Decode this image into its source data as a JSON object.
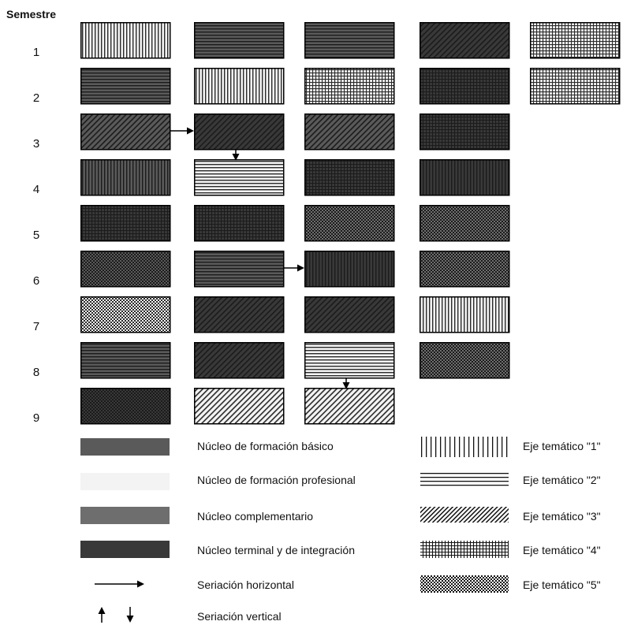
{
  "header": {
    "semester_label": "Semestre"
  },
  "colors": {
    "basico": "#5a5a5a",
    "profesional": "#f3f3f3",
    "complementario": "#6e6e6e",
    "terminal": "#393939",
    "line_dark": "#1b1b1b",
    "line_on_light": "#2a2a2a"
  },
  "semesters": [
    {
      "label": "1",
      "courses": [
        {
          "nucleus": "profesional",
          "axis": "1"
        },
        {
          "nucleus": "basico",
          "axis": "2"
        },
        {
          "nucleus": "basico",
          "axis": "2"
        },
        {
          "nucleus": "terminal",
          "axis": "3"
        },
        {
          "nucleus": "profesional",
          "axis": "4"
        }
      ]
    },
    {
      "label": "2",
      "courses": [
        {
          "nucleus": "basico",
          "axis": "2"
        },
        {
          "nucleus": "profesional",
          "axis": "1"
        },
        {
          "nucleus": "profesional",
          "axis": "4"
        },
        {
          "nucleus": "terminal",
          "axis": "4"
        },
        {
          "nucleus": "profesional",
          "axis": "4"
        }
      ]
    },
    {
      "label": "3",
      "courses": [
        {
          "nucleus": "basico",
          "axis": "3"
        },
        {
          "nucleus": "terminal",
          "axis": "3"
        },
        {
          "nucleus": "basico",
          "axis": "3"
        },
        {
          "nucleus": "terminal",
          "axis": "4"
        }
      ]
    },
    {
      "label": "4",
      "courses": [
        {
          "nucleus": "basico",
          "axis": "1"
        },
        {
          "nucleus": "profesional",
          "axis": "2"
        },
        {
          "nucleus": "terminal",
          "axis": "4"
        },
        {
          "nucleus": "terminal",
          "axis": "1"
        }
      ]
    },
    {
      "label": "5",
      "courses": [
        {
          "nucleus": "terminal",
          "axis": "4"
        },
        {
          "nucleus": "terminal",
          "axis": "4"
        },
        {
          "nucleus": "complementario",
          "axis": "5"
        },
        {
          "nucleus": "complementario",
          "axis": "5"
        }
      ]
    },
    {
      "label": "6",
      "courses": [
        {
          "nucleus": "basico",
          "axis": "5"
        },
        {
          "nucleus": "basico",
          "axis": "2"
        },
        {
          "nucleus": "terminal",
          "axis": "1"
        },
        {
          "nucleus": "complementario",
          "axis": "5"
        }
      ]
    },
    {
      "label": "7",
      "courses": [
        {
          "nucleus": "profesional",
          "axis": "5"
        },
        {
          "nucleus": "terminal",
          "axis": "3"
        },
        {
          "nucleus": "terminal",
          "axis": "3"
        },
        {
          "nucleus": "profesional",
          "axis": "1"
        }
      ]
    },
    {
      "label": "8",
      "courses": [
        {
          "nucleus": "basico",
          "axis": "2"
        },
        {
          "nucleus": "terminal",
          "axis": "3"
        },
        {
          "nucleus": "profesional",
          "axis": "2"
        },
        {
          "nucleus": "complementario",
          "axis": "5"
        }
      ]
    },
    {
      "label": "9",
      "courses": [
        {
          "nucleus": "terminal",
          "axis": "5"
        },
        {
          "nucleus": "profesional",
          "axis": "3"
        },
        {
          "nucleus": "profesional",
          "axis": "3"
        }
      ]
    }
  ],
  "seriations": [
    {
      "type": "horizontal",
      "semester": 3,
      "from_course": 1,
      "to_course": 2
    },
    {
      "type": "vertical",
      "from_semester": 3,
      "to_semester": 4,
      "course": 2
    },
    {
      "type": "horizontal",
      "semester": 6,
      "from_course": 2,
      "to_course": 3
    },
    {
      "type": "vertical",
      "from_semester": 8,
      "to_semester": 9,
      "course": 3
    }
  ],
  "legend": {
    "nuclei": [
      {
        "key": "basico",
        "label": "Núcleo de formación básico"
      },
      {
        "key": "profesional",
        "label": "Núcleo de formación profesional"
      },
      {
        "key": "complementario",
        "label": "Núcleo complementario"
      },
      {
        "key": "terminal",
        "label": "Núcleo terminal y de integración"
      }
    ],
    "axes": [
      {
        "key": "1",
        "label": "Eje temático \"1\""
      },
      {
        "key": "2",
        "label": "Eje temático \"2\""
      },
      {
        "key": "3",
        "label": "Eje temático \"3\""
      },
      {
        "key": "4",
        "label": "Eje temático \"4\""
      },
      {
        "key": "5",
        "label": "Eje temático \"5\""
      }
    ],
    "horizontal_seriation": "Seriación horizontal",
    "vertical_seriation": "Seriación vertical"
  }
}
